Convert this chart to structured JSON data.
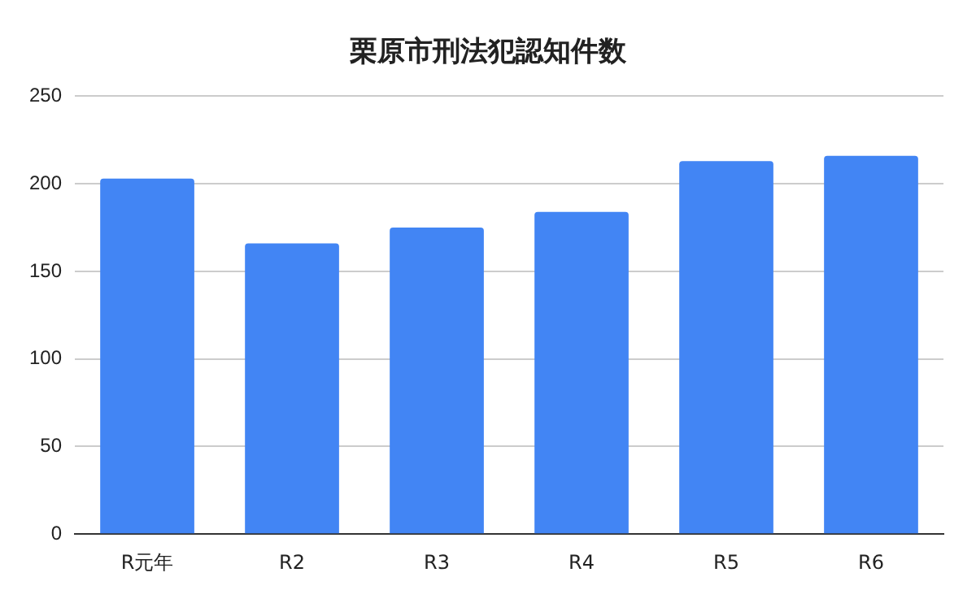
{
  "chart_data": {
    "type": "bar",
    "title": "栗原市刑法犯認知件数",
    "categories": [
      "R元年",
      "R2",
      "R3",
      "R4",
      "R5",
      "R6"
    ],
    "values": [
      203,
      166,
      175,
      184,
      213,
      216
    ],
    "color": "#4285f4",
    "ylim": [
      0,
      250
    ],
    "yticks": [
      0,
      50,
      100,
      150,
      200,
      250
    ],
    "grid": "y"
  }
}
